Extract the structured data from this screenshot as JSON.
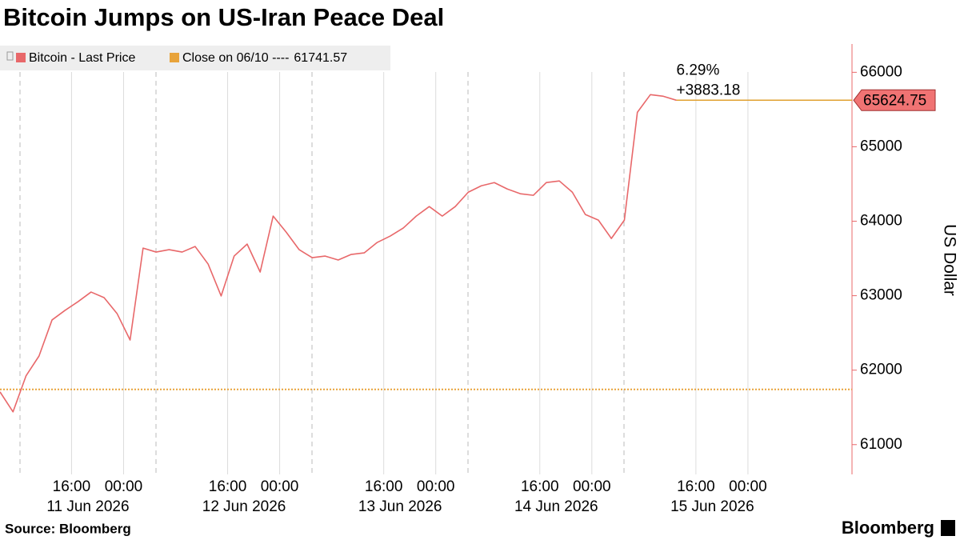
{
  "chart_data": {
    "type": "line",
    "title": "Bitcoin Jumps on US-Iran Peace Deal",
    "y_label": "US Dollar",
    "source": "Source: Bloomberg",
    "brand": "Bloomberg",
    "x": [
      "2026-06-10T05:00",
      "2026-06-10T07:00",
      "2026-06-10T09:00",
      "2026-06-10T11:00",
      "2026-06-10T13:00",
      "2026-06-10T15:00",
      "2026-06-10T17:00",
      "2026-06-10T19:00",
      "2026-06-10T21:00",
      "2026-06-10T23:00",
      "2026-06-11T01:00",
      "2026-06-11T03:00",
      "2026-06-11T05:00",
      "2026-06-11T07:00",
      "2026-06-11T09:00",
      "2026-06-11T11:00",
      "2026-06-11T13:00",
      "2026-06-11T15:00",
      "2026-06-11T17:00",
      "2026-06-11T19:00",
      "2026-06-11T21:00",
      "2026-06-11T23:00",
      "2026-06-12T01:00",
      "2026-06-12T03:00",
      "2026-06-12T05:00",
      "2026-06-12T07:00",
      "2026-06-12T09:00",
      "2026-06-12T11:00",
      "2026-06-12T13:00",
      "2026-06-12T15:00",
      "2026-06-12T17:00",
      "2026-06-12T19:00",
      "2026-06-12T21:00",
      "2026-06-12T23:00",
      "2026-06-13T01:00",
      "2026-06-13T03:00",
      "2026-06-13T05:00",
      "2026-06-13T07:00",
      "2026-06-13T09:00",
      "2026-06-13T11:00",
      "2026-06-13T13:00",
      "2026-06-13T15:00",
      "2026-06-13T17:00",
      "2026-06-13T19:00",
      "2026-06-13T21:00",
      "2026-06-13T23:00",
      "2026-06-14T01:00",
      "2026-06-14T03:00",
      "2026-06-14T05:00",
      "2026-06-14T07:00",
      "2026-06-14T09:00",
      "2026-06-14T11:00",
      "2026-06-14T13:00"
    ],
    "series": [
      {
        "name": "Bitcoin - Last Price",
        "color": "#e8686a",
        "values": [
          61708,
          61440,
          61923,
          62190,
          62674,
          62803,
          62920,
          63049,
          62974,
          62760,
          62405,
          63639,
          63586,
          63618,
          63586,
          63661,
          63425,
          62996,
          63532,
          63693,
          63318,
          64069,
          63854,
          63618,
          63511,
          63532,
          63479,
          63554,
          63575,
          63715,
          63801,
          63908,
          64069,
          64197,
          64069,
          64197,
          64390,
          64476,
          64519,
          64433,
          64369,
          64348,
          64519,
          64541,
          64390,
          64090,
          64015,
          63768,
          64015,
          65463,
          65700,
          65678,
          65624.75
        ]
      }
    ],
    "reference": {
      "name": "Close on 06/10 ----",
      "value": 61741.57,
      "color": "#e8a33a"
    },
    "annotations": {
      "change_pct": "6.29%",
      "change_abs": "+3883.18",
      "color": "#e0a030"
    },
    "xlim": [
      "2026-06-10T05:00",
      "2026-06-15T16:00"
    ],
    "xticks": [
      {
        "value": "2026-06-10T16:00",
        "label": "16:00"
      },
      {
        "value": "2026-06-11T00:00",
        "label": "00:00"
      },
      {
        "value": "2026-06-11T16:00",
        "label": "16:00"
      },
      {
        "value": "2026-06-12T00:00",
        "label": "00:00"
      },
      {
        "value": "2026-06-12T16:00",
        "label": "16:00"
      },
      {
        "value": "2026-06-13T00:00",
        "label": "00:00"
      },
      {
        "value": "2026-06-13T16:00",
        "label": "16:00"
      },
      {
        "value": "2026-06-14T00:00",
        "label": "00:00"
      },
      {
        "value": "2026-06-14T16:00",
        "label": "16:00"
      },
      {
        "value": "2026-06-15T00:00",
        "label": "00:00"
      }
    ],
    "x_group_labels": [
      "11 Jun 2026",
      "12 Jun 2026",
      "13 Jun 2026",
      "14 Jun 2026",
      "15 Jun 2026"
    ],
    "ylim": [
      60600,
      66380
    ],
    "yticks": [
      61000,
      62000,
      63000,
      64000,
      65000,
      66000
    ],
    "grid": true
  }
}
